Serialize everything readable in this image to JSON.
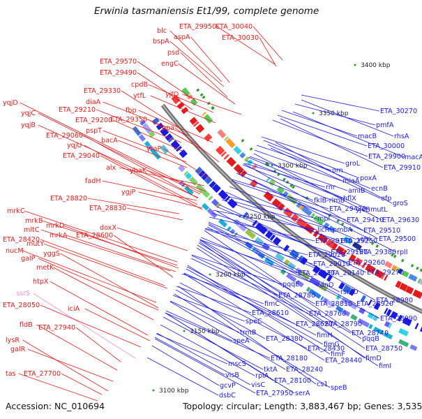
{
  "title": "Erwinia tasmaniensis Et1/99, complete genome",
  "accession": "Accession: NC_010694",
  "topology": "Topology: circular; Length: 3,883,467 bp; Genes: 3,535",
  "scale_ticks": [
    "3400 kbp",
    "3350 kbp",
    "3300 kbp",
    "3250 kbp",
    "3200 kbp",
    "3150 kbp",
    "3100 kbp"
  ],
  "colors": {
    "left_strand": "#e31b1b",
    "right_strand": "#1a1ae0",
    "other": "#e88fe0",
    "backbone": "#8a8a8a"
  },
  "left_labels": [
    {
      "text": "blc",
      "c": "red"
    },
    {
      "text": "ETA_29950",
      "c": "red"
    },
    {
      "text": "ETA_30040",
      "c": "red"
    },
    {
      "text": "bspA",
      "c": "red"
    },
    {
      "text": "aspA",
      "c": "red"
    },
    {
      "text": "ETA_30030",
      "c": "red"
    },
    {
      "text": "psd",
      "c": "red"
    },
    {
      "text": "engC",
      "c": "red"
    },
    {
      "text": "ETA_29570",
      "c": "red"
    },
    {
      "text": "ETA_29490",
      "c": "red"
    },
    {
      "text": "cpdB",
      "c": "red"
    },
    {
      "text": "ETA_29330",
      "c": "red"
    },
    {
      "text": "ytfL",
      "c": "red"
    },
    {
      "text": "yjfO",
      "c": "red"
    },
    {
      "text": "yqjD",
      "c": "red"
    },
    {
      "text": "diaA",
      "c": "red"
    },
    {
      "text": "ETA_29210",
      "c": "red"
    },
    {
      "text": "fbp",
      "c": "red"
    },
    {
      "text": "yqjC",
      "c": "red"
    },
    {
      "text": "ETA_29200",
      "c": "red"
    },
    {
      "text": "ETA_29350",
      "c": "red"
    },
    {
      "text": "yqjB",
      "c": "red"
    },
    {
      "text": "pspT",
      "c": "red"
    },
    {
      "text": "ppa",
      "c": "red"
    },
    {
      "text": "ETA_29060",
      "c": "red"
    },
    {
      "text": "bacA",
      "c": "red"
    },
    {
      "text": "yqjU",
      "c": "red"
    },
    {
      "text": "yraP",
      "c": "red"
    },
    {
      "text": "ETA_29040",
      "c": "red"
    },
    {
      "text": "alx",
      "c": "red"
    },
    {
      "text": "yhaK",
      "c": "red"
    },
    {
      "text": "fadH",
      "c": "red"
    },
    {
      "text": "ygjP",
      "c": "red"
    },
    {
      "text": "ETA_28820",
      "c": "red"
    },
    {
      "text": "ETA_28830",
      "c": "red"
    },
    {
      "text": "mrkC",
      "c": "red"
    },
    {
      "text": "mrkB",
      "c": "red"
    },
    {
      "text": "mrkD",
      "c": "red"
    },
    {
      "text": "doxX",
      "c": "red"
    },
    {
      "text": "mltC",
      "c": "red"
    },
    {
      "text": "mrkA",
      "c": "red"
    },
    {
      "text": "ETA_28600",
      "c": "red"
    },
    {
      "text": "ETA_28420",
      "c": "red"
    },
    {
      "text": "mutY",
      "c": "red"
    },
    {
      "text": "nucM",
      "c": "red"
    },
    {
      "text": "yggS",
      "c": "red"
    },
    {
      "text": "galP",
      "c": "red"
    },
    {
      "text": "metK",
      "c": "red"
    },
    {
      "text": "htpX",
      "c": "red"
    },
    {
      "text": "ssrS",
      "c": "pink"
    },
    {
      "text": "ETA_28050",
      "c": "red"
    },
    {
      "text": "iciA",
      "c": "red"
    },
    {
      "text": "fldB",
      "c": "red"
    },
    {
      "text": "ETA_27940",
      "c": "red"
    },
    {
      "text": "lysR",
      "c": "red"
    },
    {
      "text": "galR",
      "c": "red"
    },
    {
      "text": "tas",
      "c": "red"
    },
    {
      "text": "ETA_27700",
      "c": "red"
    }
  ],
  "right_labels": [
    {
      "text": "ETA_30270"
    },
    {
      "text": "pmfA"
    },
    {
      "text": "macB"
    },
    {
      "text": "rhsA"
    },
    {
      "text": "ETA_30000"
    },
    {
      "text": "ETA_29900"
    },
    {
      "text": "macA"
    },
    {
      "text": "groL"
    },
    {
      "text": "ETA_29910"
    },
    {
      "text": "orn"
    },
    {
      "text": "miaA"
    },
    {
      "text": "poxA"
    },
    {
      "text": "amiB"
    },
    {
      "text": "ecnB"
    },
    {
      "text": "rnr"
    },
    {
      "text": "efp"
    },
    {
      "text": "fklB-rlmB"
    },
    {
      "text": "hflX"
    },
    {
      "text": "groS"
    },
    {
      "text": "ETA_29420"
    },
    {
      "text": "yjeB"
    },
    {
      "text": "mutL"
    },
    {
      "text": "mpl"
    },
    {
      "text": "ETA_29410"
    },
    {
      "text": "ETA_29630"
    },
    {
      "text": "licR"
    },
    {
      "text": "pmbA"
    },
    {
      "text": "ETA_29510"
    },
    {
      "text": "ETA_29160"
    },
    {
      "text": "ETA_29250"
    },
    {
      "text": "ytfK"
    },
    {
      "text": "ETA_29500"
    },
    {
      "text": "ETA_29190"
    },
    {
      "text": "ETA_29380"
    },
    {
      "text": "rplI"
    },
    {
      "text": "ETA_29020"
    },
    {
      "text": "ETA_29010"
    },
    {
      "text": "ETA_29260"
    },
    {
      "text": "ETA_28930"
    },
    {
      "text": "ETA_29140"
    },
    {
      "text": "ETA_29270"
    },
    {
      "text": "pqqE"
    },
    {
      "text": "idnO"
    },
    {
      "text": "rsmD"
    },
    {
      "text": "ETA_28780"
    },
    {
      "text": "ETA_28980"
    },
    {
      "text": "fimC"
    },
    {
      "text": "ETA_28810"
    },
    {
      "text": "ETA_28920"
    },
    {
      "text": "ETA_28610"
    },
    {
      "text": "ETA_28760"
    },
    {
      "text": "ETA_28990"
    },
    {
      "text": "speC"
    },
    {
      "text": "ETA_28620"
    },
    {
      "text": "ETA_28790"
    },
    {
      "text": "trmB"
    },
    {
      "text": "fimH"
    },
    {
      "text": "ETA_28740"
    },
    {
      "text": "pqqB"
    },
    {
      "text": "speA"
    },
    {
      "text": "ETA_28380"
    },
    {
      "text": "fimG"
    },
    {
      "text": "ETA_28750"
    },
    {
      "text": "ETA_28430"
    },
    {
      "text": "fimF"
    },
    {
      "text": "fimD"
    },
    {
      "text": "ETA_28440"
    },
    {
      "text": "ETA_28180"
    },
    {
      "text": "fimI"
    },
    {
      "text": "mscS"
    },
    {
      "text": "tktA"
    },
    {
      "text": "ETA_28240"
    },
    {
      "text": "visB"
    },
    {
      "text": "rpiA"
    },
    {
      "text": "ETA_28100"
    },
    {
      "text": "cs1"
    },
    {
      "text": "gcvP"
    },
    {
      "text": "visC"
    },
    {
      "text": "speB"
    },
    {
      "text": "dsbC"
    },
    {
      "text": "ETA_27950"
    },
    {
      "text": "serA"
    }
  ]
}
